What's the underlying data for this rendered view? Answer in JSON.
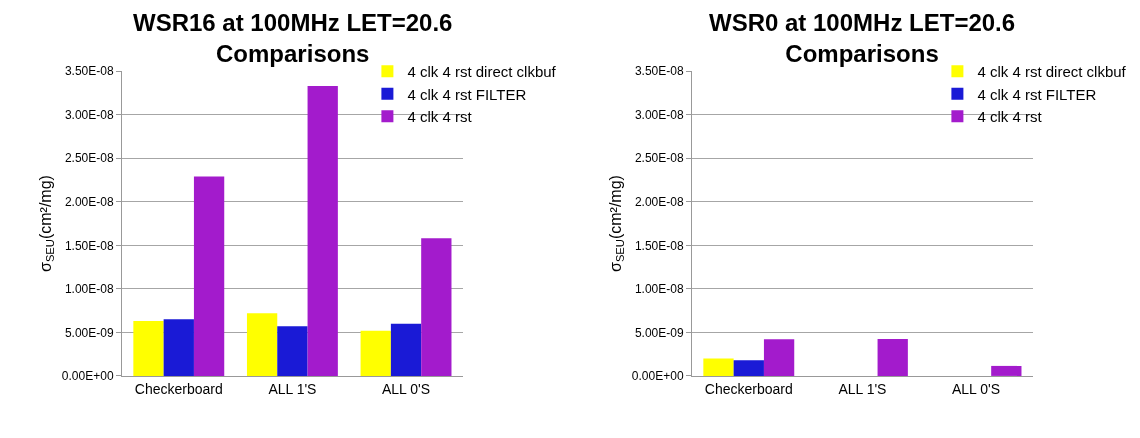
{
  "chart_data": [
    {
      "type": "bar",
      "title": "WSR16 at 100MHz LET=20.6 Comparisons",
      "ylabel": "σ$_{SEU}$(cm²/mg)",
      "categories": [
        "Checkerboard",
        "ALL 1'S",
        "ALL 0'S"
      ],
      "series": [
        {
          "name": "4 clk 4 rst direct clkbuf",
          "color": "#ffff00",
          "values": [
            6.3e-09,
            7.2e-09,
            5.2e-09
          ]
        },
        {
          "name": "4 clk 4 rst FILTER",
          "color": "#1a1ad6",
          "values": [
            6.5e-09,
            5.7e-09,
            6e-09
          ]
        },
        {
          "name": "4 clk 4 rst",
          "color": "#a31bcc",
          "values": [
            2.29e-08,
            3.33e-08,
            1.58e-08
          ]
        }
      ],
      "ylim": [
        0,
        3.5e-08
      ],
      "yticks": [
        {
          "value": 0,
          "label": "0.00E+00"
        },
        {
          "value": 5e-09,
          "label": "5.00E-09"
        },
        {
          "value": 1e-08,
          "label": "1.00E-08"
        },
        {
          "value": 1.5e-08,
          "label": "1.50E-08"
        },
        {
          "value": 2e-08,
          "label": "2.00E-08"
        },
        {
          "value": 2.5e-08,
          "label": "2.50E-08"
        },
        {
          "value": 3e-08,
          "label": "3.00E-08"
        },
        {
          "value": 3.5e-08,
          "label": "3.50E-08"
        }
      ],
      "grid": "y",
      "legend": "right"
    },
    {
      "type": "bar",
      "title": "WSR0 at 100MHz LET=20.6 Comparisons",
      "ylabel": "σ$_{SEU}$(cm²/mg)",
      "categories": [
        "Checkerboard",
        "ALL 1'S",
        "ALL 0'S"
      ],
      "series": [
        {
          "name": "4 clk 4 rst direct clkbuf",
          "color": "#ffff00",
          "values": [
            2e-09,
            null,
            null
          ]
        },
        {
          "name": "4 clk 4 rst FILTER",
          "color": "#1a1ad6",
          "values": [
            1.8e-09,
            null,
            null
          ]
        },
        {
          "name": "4 clk 4 rst",
          "color": "#a31bcc",
          "values": [
            4.2e-09,
            4.25e-09,
            1.15e-09
          ]
        }
      ],
      "ylim": [
        0,
        3.5e-08
      ],
      "yticks": [
        {
          "value": 0,
          "label": "0.00E+00"
        },
        {
          "value": 5e-09,
          "label": "5.00E-09"
        },
        {
          "value": 1e-08,
          "label": "1.00E-08"
        },
        {
          "value": 1.5e-08,
          "label": "1.50E-08"
        },
        {
          "value": 2e-08,
          "label": "2.00E-08"
        },
        {
          "value": 2.5e-08,
          "label": "2.50E-08"
        },
        {
          "value": 3e-08,
          "label": "3.00E-08"
        },
        {
          "value": 3.5e-08,
          "label": "3.50E-08"
        }
      ],
      "grid": "y",
      "legend": "right"
    }
  ]
}
